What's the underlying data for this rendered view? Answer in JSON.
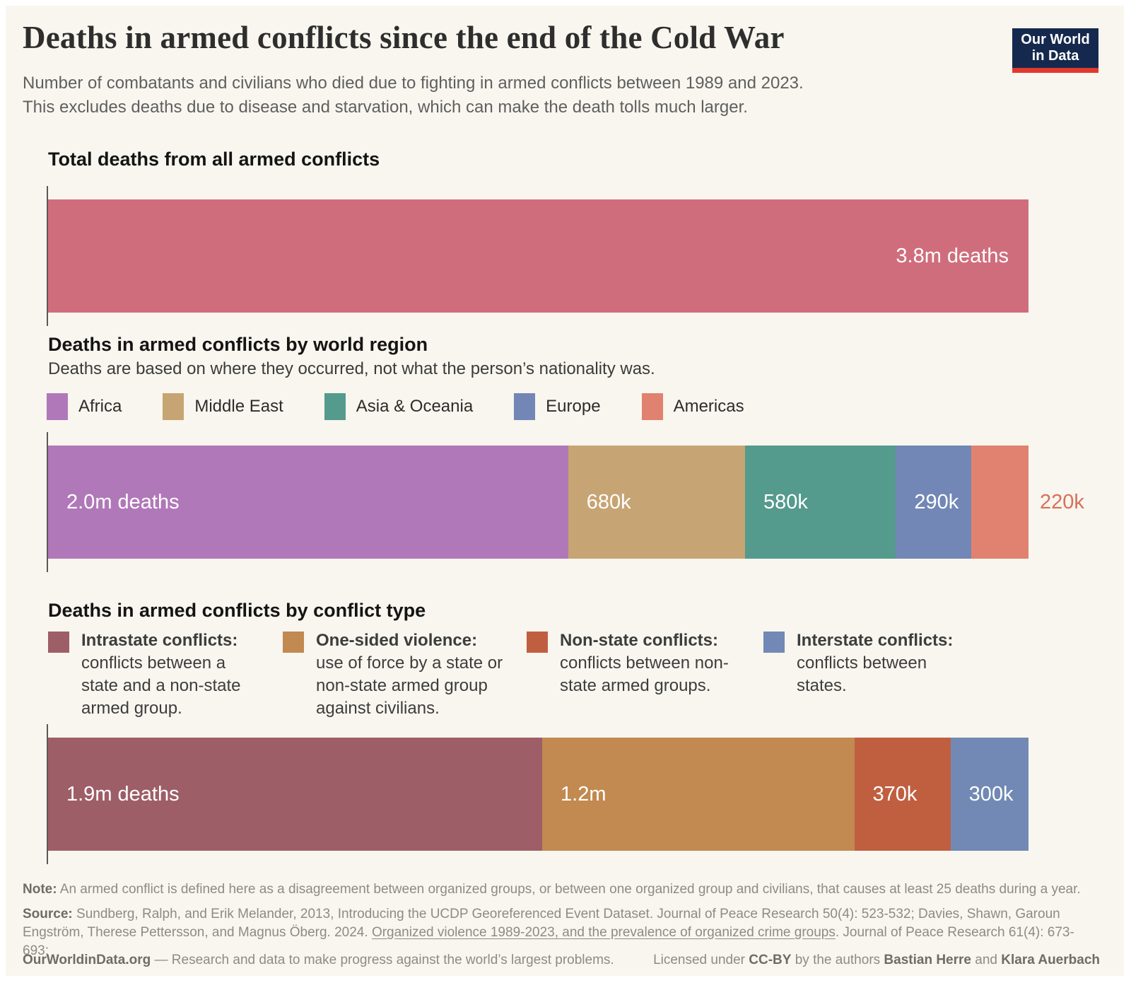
{
  "header": {
    "title": "Deaths in armed conflicts since the end of the Cold War",
    "subtitle_line1": "Number of combatants and civilians who died due to fighting in armed conflicts between 1989 and 2023.",
    "subtitle_line2": "This excludes deaths due to disease and starvation, which can make the death tolls much larger.",
    "logo": {
      "line1": "Our World",
      "line2": "in Data",
      "bg_color": "#15294e",
      "accent_color": "#e0392f"
    }
  },
  "colors": {
    "background": "#f8f6ee",
    "axis": "#5a5a5a",
    "total_bar": "#d06d7c",
    "africa": "#b078b8",
    "middle_east": "#c7a473",
    "asia_oceania": "#549a8d",
    "europe": "#7287b5",
    "americas": "#e0826f",
    "intrastate": "#9e5e67",
    "one_sided": "#c28950",
    "non_state": "#c05f40",
    "interstate": "#7189b4"
  },
  "chart_data": [
    {
      "type": "bar",
      "orientation": "horizontal",
      "stacked": false,
      "grid": false,
      "title": "Total deaths from all armed conflicts",
      "xlim": [
        0,
        3800000
      ],
      "segments": [
        {
          "id": "total",
          "name": "Total deaths",
          "value": 3800000,
          "value_label": "3.8m deaths",
          "color": "#d06d7c",
          "label_align": "right",
          "label_color": "#ffffff"
        }
      ]
    },
    {
      "type": "bar",
      "orientation": "horizontal",
      "stacked": true,
      "grid": false,
      "title": "Deaths in armed conflicts by world region",
      "subtitle": "Deaths are based on where they occurred, not what the person’s nationality was.",
      "legend_position": "top",
      "segments": [
        {
          "id": "africa",
          "name": "Africa",
          "legend_label": "Africa",
          "value": 2000000,
          "value_label": "2.0m deaths",
          "color": "#b078b8",
          "label_color": "#ffffff"
        },
        {
          "id": "middle-east",
          "name": "Middle East",
          "legend_label": "Middle East",
          "value": 680000,
          "value_label": "680k",
          "color": "#c7a473",
          "label_color": "#ffffff"
        },
        {
          "id": "asia-oceania",
          "name": "Asia & Oceania",
          "legend_label": "Asia & Oceania",
          "value": 580000,
          "value_label": "580k",
          "color": "#549a8d",
          "label_color": "#ffffff"
        },
        {
          "id": "europe",
          "name": "Europe",
          "legend_label": "Europe",
          "value": 290000,
          "value_label": "290k",
          "color": "#7287b5",
          "label_color": "#ffffff"
        },
        {
          "id": "americas",
          "name": "Americas",
          "legend_label": "Americas",
          "value": 220000,
          "value_label": "220k",
          "color": "#e0826f",
          "label_outside": true,
          "label_color": "#d8705c"
        }
      ]
    },
    {
      "type": "bar",
      "orientation": "horizontal",
      "stacked": true,
      "grid": false,
      "title": "Deaths in armed conflicts by conflict type",
      "legend_position": "top",
      "segments": [
        {
          "id": "intrastate",
          "name": "Intrastate conflicts",
          "legend_label": "Intrastate conflicts:",
          "description": "conflicts between a state and a non-state armed group.",
          "value": 1900000,
          "value_label": "1.9m deaths",
          "color": "#9e5e67",
          "label_color": "#ffffff"
        },
        {
          "id": "one-sided",
          "name": "One-sided violence",
          "legend_label": "One-sided violence:",
          "description": "use of force by a state or non-state armed group against civilians.",
          "value": 1200000,
          "value_label": "1.2m",
          "color": "#c28950",
          "label_color": "#ffffff"
        },
        {
          "id": "non-state",
          "name": "Non-state conflicts",
          "legend_label": "Non-state conflicts:",
          "description": "conflicts between non-state armed groups.",
          "value": 370000,
          "value_label": "370k",
          "color": "#c05f40",
          "label_color": "#ffffff"
        },
        {
          "id": "interstate",
          "name": "Interstate conflicts",
          "legend_label": "Interstate conflicts:",
          "description": "conflicts between states.",
          "value": 300000,
          "value_label": "300k",
          "color": "#7189b4",
          "label_color": "#ffffff"
        }
      ]
    }
  ],
  "footer": {
    "note_label": "Note:",
    "note_text": " An armed conflict is defined here as a disagreement between organized groups, or between one organized group and civilians, that causes at least 25 deaths during a year.",
    "source_label": "Source:",
    "source_before_link": " Sundberg, Ralph, and Erik Melander, 2013, Introducing the UCDP Georeferenced Event Dataset. Journal of Peace Research 50(4): 523-532; Davies, Shawn, Garoun Engström, Therese Pettersson, and Magnus Öberg. 2024. ",
    "source_link": "Organized violence 1989-2023, and the prevalence of organized crime groups",
    "source_after_link": ". Journal of Peace Research 61(4): 673-693;",
    "site": "OurWorldinData.org",
    "tagline": " — Research and data to make progress against the world’s largest problems.",
    "license_prefix": "Licensed under ",
    "license_name": "CC-BY",
    "license_mid": " by the authors ",
    "author1": "Bastian Herre",
    "license_and": " and ",
    "author2": "Klara Auerbach"
  }
}
